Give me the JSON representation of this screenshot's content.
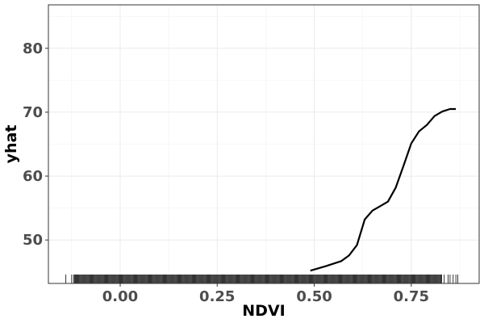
{
  "chart_data": {
    "type": "line",
    "xlabel": "NDVI",
    "ylabel": "yhat",
    "xlim": [
      -0.185,
      0.925
    ],
    "ylim": [
      43.2,
      86.8
    ],
    "x_ticks": [
      0.0,
      0.25,
      0.5,
      0.75
    ],
    "x_tick_labels": [
      "0.00",
      "0.25",
      "0.50",
      "0.75"
    ],
    "y_ticks": [
      50,
      60,
      70,
      80
    ],
    "y_tick_labels": [
      "50",
      "60",
      "70",
      "80"
    ],
    "grid": true,
    "legend": "none",
    "line_color": "#000000",
    "series": [
      {
        "x": [
          0.49,
          0.53,
          0.57,
          0.59,
          0.61,
          0.63,
          0.65,
          0.67,
          0.69,
          0.71,
          0.73,
          0.75,
          0.77,
          0.79,
          0.81,
          0.83,
          0.85,
          0.865
        ],
        "values": [
          45.2,
          45.9,
          46.7,
          47.6,
          49.2,
          53.2,
          54.6,
          55.3,
          56.0,
          58.2,
          61.6,
          65.1,
          67.0,
          68.0,
          69.4,
          70.1,
          70.5,
          70.5
        ]
      }
    ],
    "rug": {
      "range": [
        -0.14,
        0.87
      ],
      "dense_range": [
        -0.12,
        0.83
      ],
      "sparse_x": [
        -0.14,
        -0.125,
        0.835,
        0.845,
        0.85,
        0.858,
        0.865,
        0.87
      ]
    }
  }
}
